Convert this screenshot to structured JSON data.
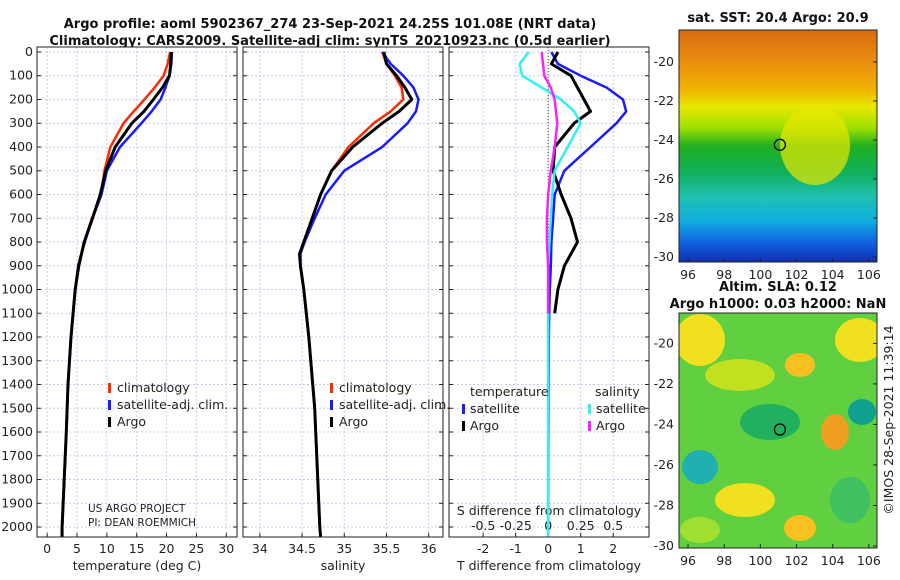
{
  "titles": {
    "line1": "Argo profile: aoml 5902367_274 23-Sep-2021 24.25S 101.08E (NRT data)",
    "line2": "Climatology: CARS2009. Satellite-adj clim: synTS_20210923.nc (0.5d earlier)"
  },
  "credit": {
    "line1": "US ARGO PROJECT",
    "line2": "PI: DEAN ROEMMICH"
  },
  "timestamp": "©IMOS 28-Sep-2021 11:39:14",
  "colors": {
    "climatology": "#ff2a00",
    "satellite": "#1a1aff",
    "argo": "#000000",
    "s_satellite": "#30f0f0",
    "s_argo": "#ff20ff"
  },
  "chart_data": [
    {
      "type": "line",
      "xlabel": "temperature (deg C)",
      "ylabel": "depth",
      "xlim": [
        -1.7,
        31.8
      ],
      "ylim": [
        2042,
        -21
      ],
      "xticks": [
        0,
        5,
        10,
        15,
        20,
        25,
        30
      ],
      "yticks": [
        0,
        100,
        200,
        300,
        400,
        500,
        600,
        700,
        800,
        900,
        1000,
        1100,
        1200,
        1300,
        1400,
        1500,
        1600,
        1700,
        1800,
        1900,
        2000
      ],
      "legend": [
        "climatology",
        "satellite-adj. clim.",
        "Argo"
      ],
      "depth": [
        0,
        50,
        100,
        150,
        200,
        250,
        300,
        400,
        500,
        600,
        700,
        800,
        900,
        1000,
        1200,
        1400,
        1600,
        1800,
        2000,
        2042
      ],
      "series": [
        {
          "name": "climatology",
          "key": "climatology",
          "values": [
            20.6,
            20.2,
            19.5,
            18,
            16.3,
            14.5,
            12.8,
            10.6,
            9.6,
            9.0,
            7.5,
            6.2,
            5.2,
            4.7,
            4.0,
            3.5,
            3.2,
            2.85,
            2.5,
            2.45
          ]
        },
        {
          "name": "satellite-adj. clim.",
          "key": "satellite",
          "values": [
            20.9,
            20.8,
            20.5,
            19.8,
            19.0,
            17.5,
            15.8,
            12.2,
            10.0,
            9.1,
            7.6,
            6.3,
            5.2,
            4.7,
            4.0,
            3.5,
            3.2,
            2.85,
            2.5,
            2.45
          ]
        },
        {
          "name": "Argo",
          "key": "argo",
          "values": [
            20.8,
            20.7,
            20.5,
            19.3,
            17.8,
            16.2,
            14.2,
            11.4,
            9.8,
            8.9,
            7.6,
            6.2,
            5.3,
            4.7,
            4.0,
            3.5,
            3.2,
            2.85,
            2.5,
            2.5
          ]
        }
      ]
    },
    {
      "type": "line",
      "xlabel": "salinity",
      "xlim": [
        33.8,
        36.17
      ],
      "ylim": [
        2042,
        -21
      ],
      "xticks": [
        34,
        34.5,
        35,
        35.5,
        36
      ],
      "legend": [
        "climatology",
        "satellite-adj. clim.",
        "Argo"
      ],
      "depth": [
        0,
        50,
        100,
        150,
        200,
        250,
        300,
        400,
        500,
        600,
        700,
        800,
        850,
        900,
        1000,
        1200,
        1500,
        2000,
        2042
      ],
      "series": [
        {
          "name": "climatology",
          "key": "climatology",
          "values": [
            35.45,
            35.5,
            35.6,
            35.68,
            35.7,
            35.55,
            35.35,
            35.05,
            34.85,
            34.72,
            34.62,
            34.52,
            34.48,
            34.48,
            34.52,
            34.58,
            34.65,
            34.71,
            34.72
          ]
        },
        {
          "name": "satellite-adj. clim.",
          "key": "satellite",
          "values": [
            35.45,
            35.55,
            35.7,
            35.82,
            35.88,
            35.85,
            35.75,
            35.45,
            35.0,
            34.78,
            34.65,
            34.53,
            34.48,
            34.48,
            34.52,
            34.58,
            34.65,
            34.71,
            34.72
          ]
        },
        {
          "name": "Argo",
          "key": "argo",
          "values": [
            35.47,
            35.5,
            35.62,
            35.72,
            35.8,
            35.65,
            35.45,
            35.1,
            34.85,
            34.72,
            34.62,
            34.52,
            34.47,
            34.48,
            34.52,
            34.58,
            34.65,
            34.71,
            34.72
          ]
        }
      ]
    },
    {
      "type": "line",
      "xlabel": "T difference from climatology",
      "x2label": "S difference from climatology",
      "xlim": [
        -3.05,
        3.1
      ],
      "s_scale": 4,
      "ylim": [
        2042,
        -21
      ],
      "xticks": [
        -2,
        -1,
        0,
        1,
        2
      ],
      "x2ticks": [
        -0.5,
        -0.25,
        0,
        0.25,
        0.5
      ],
      "legend_titles": [
        "temperature",
        "salinity"
      ],
      "legend": [
        "satellite",
        "Argo",
        "satellite",
        "Argo"
      ],
      "depth": [
        0,
        50,
        100,
        150,
        200,
        250,
        300,
        400,
        500,
        600,
        700,
        800,
        900,
        1000,
        1100,
        1200,
        1500,
        2000,
        2042
      ],
      "series": [
        {
          "name": "T satellite",
          "key": "satellite",
          "var": "T",
          "values": [
            0.1,
            0.3,
            1.0,
            1.8,
            2.3,
            2.4,
            2.1,
            1.3,
            0.5,
            0.2,
            0.15,
            0.1,
            0.08,
            0.05,
            0.03,
            0.02,
            0.01,
            0,
            0
          ]
        },
        {
          "name": "T Argo",
          "key": "argo",
          "var": "T",
          "values": [
            0.3,
            0.1,
            0.7,
            0.9,
            1.1,
            1.3,
            0.8,
            0.2,
            0.15,
            0.4,
            0.7,
            0.9,
            0.5,
            0.3,
            0.2,
            null,
            null,
            null,
            null
          ]
        },
        {
          "name": "S satellite",
          "key": "s_satellite",
          "var": "S",
          "values": [
            -0.15,
            -0.22,
            -0.2,
            -0.05,
            0.1,
            0.2,
            0.25,
            0.15,
            0.05,
            0.03,
            0.02,
            0.01,
            0,
            0,
            0,
            0,
            0,
            0,
            0
          ]
        },
        {
          "name": "S Argo",
          "key": "s_argo",
          "var": "S",
          "values": [
            -0.05,
            -0.04,
            -0.03,
            0.02,
            0.05,
            0.06,
            0.07,
            0.05,
            0.02,
            0.0,
            -0.01,
            -0.01,
            0,
            0,
            0,
            null,
            null,
            null,
            null
          ]
        }
      ]
    }
  ],
  "maps": [
    {
      "title": "sat. SST: 20.4 Argo: 20.9",
      "xticks": [
        96,
        98,
        100,
        102,
        104,
        106
      ],
      "yticks": [
        -20,
        -22,
        -24,
        -26,
        -28,
        -30
      ],
      "xlim": [
        95.5,
        106.45
      ],
      "ylim": [
        -18.36,
        -30.26
      ],
      "argo_lon": 101.08,
      "argo_lat": -24.25
    },
    {
      "title1": "Altim. SLA: 0.12",
      "title2": "Argo h1000: 0.03 h2000: NaN",
      "xticks": [
        96,
        98,
        100,
        102,
        104,
        106
      ],
      "yticks": [
        -20,
        -22,
        -24,
        -26,
        -28,
        -30
      ],
      "xlim": [
        95.5,
        106.45
      ],
      "ylim": [
        -18.5,
        -30.1
      ],
      "argo_lon": 101.08,
      "argo_lat": -24.25
    }
  ]
}
